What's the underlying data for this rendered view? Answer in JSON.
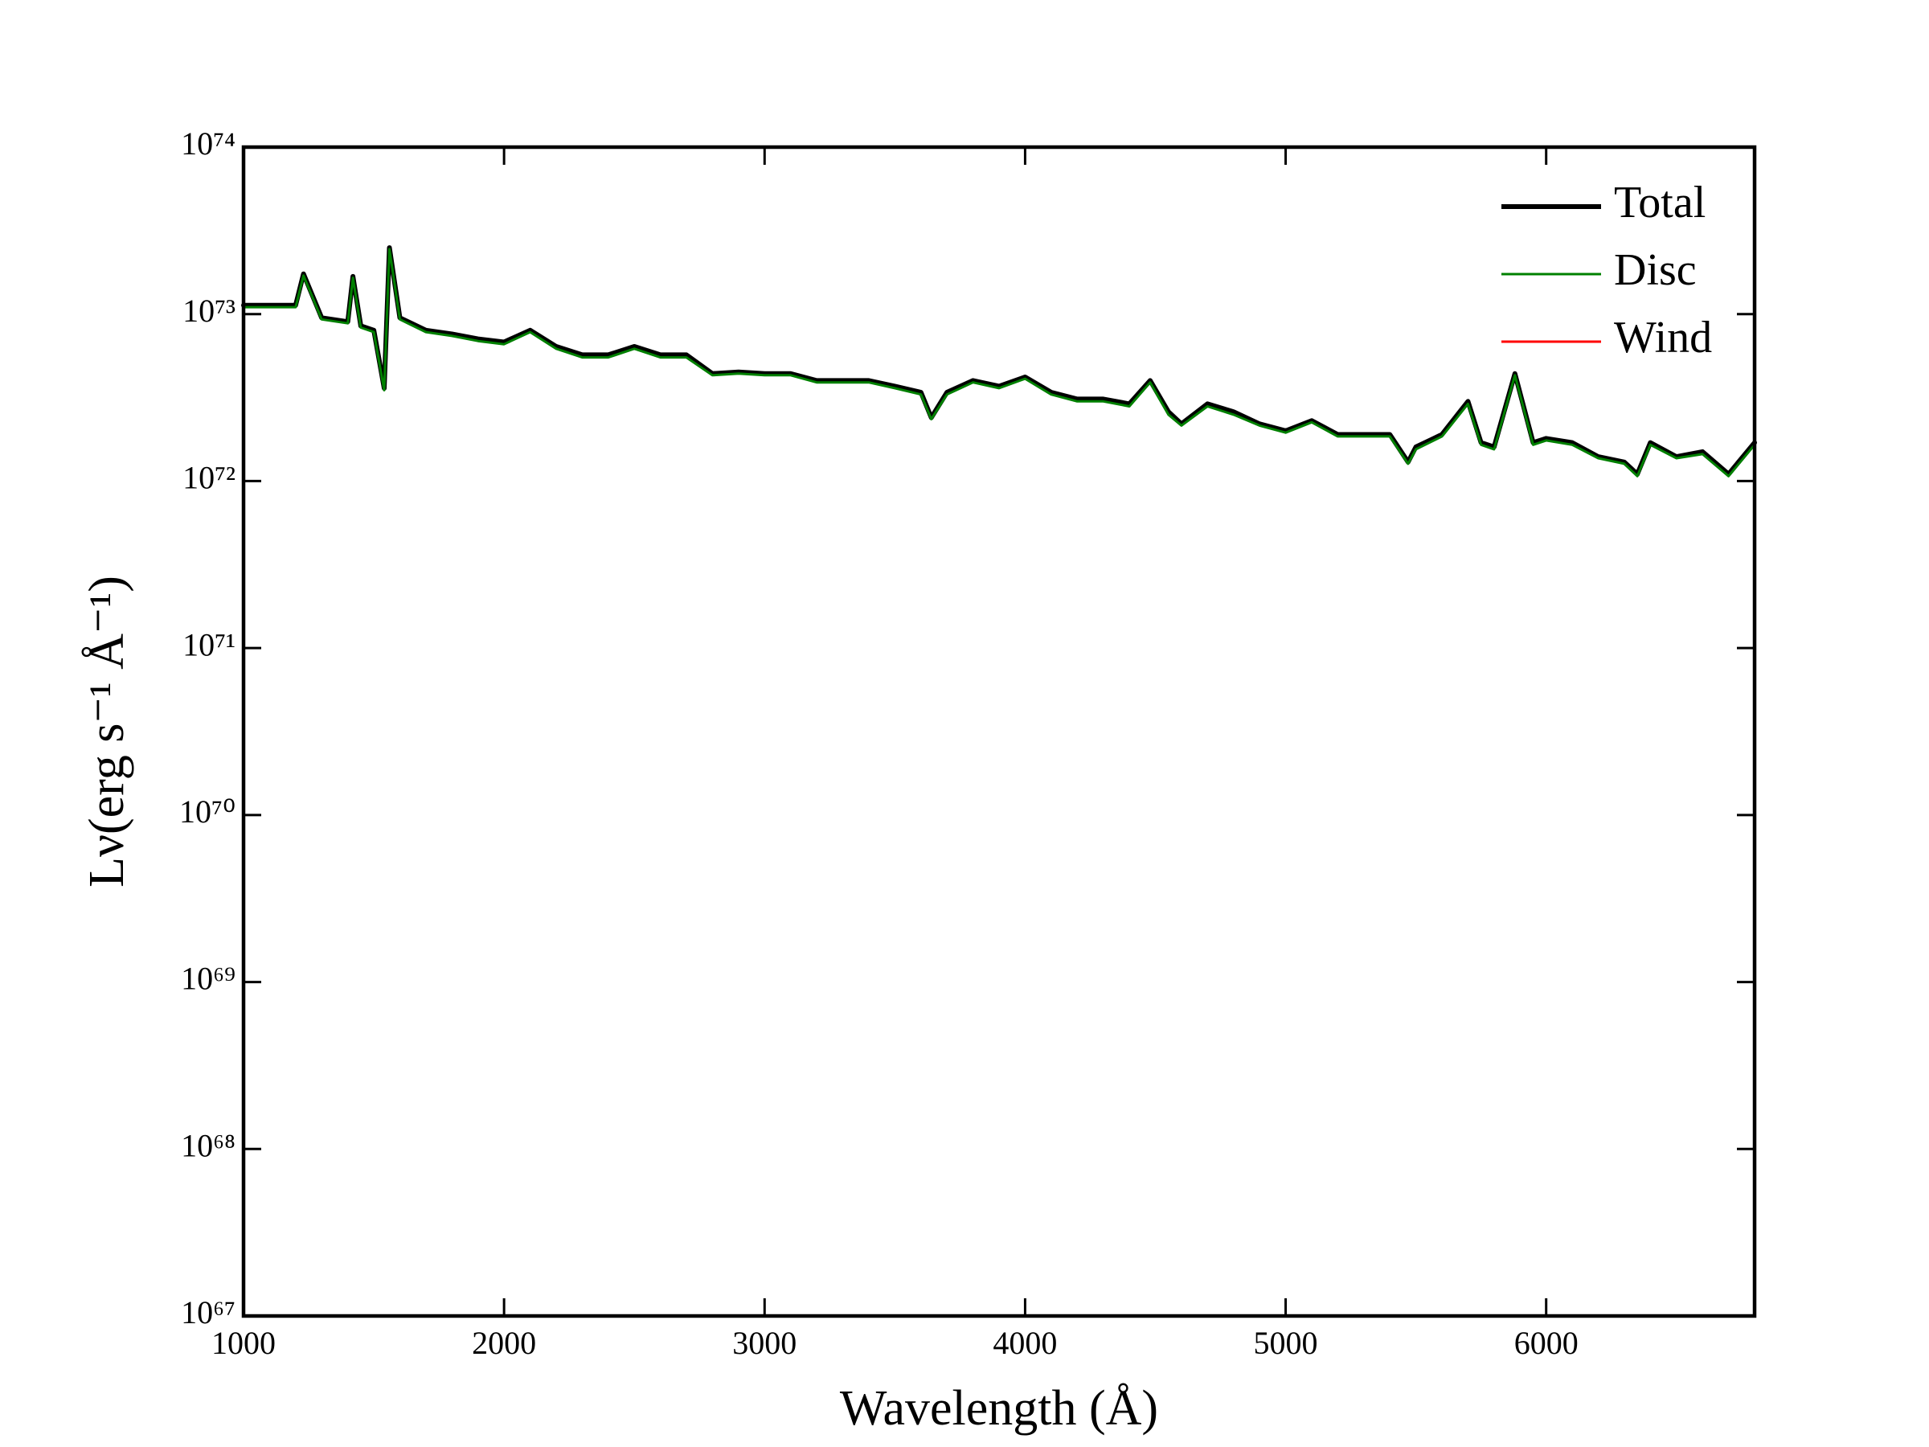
{
  "chart_data": {
    "type": "line",
    "xlabel": "Wavelength (Å)",
    "ylabel": "Lν(erg s⁻¹ Å⁻¹)",
    "yscale": "log",
    "xlim": [
      1000,
      6800
    ],
    "xticks": [
      1000,
      2000,
      3000,
      4000,
      5000,
      6000
    ],
    "ylim": [
      1e+67,
      1e+74
    ],
    "yticks": [
      {
        "value": 1e+67,
        "label": "10⁶⁷"
      },
      {
        "value": 1e+68,
        "label": "10⁶⁸"
      },
      {
        "value": 1e+69,
        "label": "10⁶⁹"
      },
      {
        "value": 1e+70,
        "label": "10⁷⁰"
      },
      {
        "value": 1e+71,
        "label": "10⁷¹"
      },
      {
        "value": 1e+72,
        "label": "10⁷²"
      },
      {
        "value": 1e+73,
        "label": "10⁷³"
      },
      {
        "value": 1e+74,
        "label": "10⁷⁴"
      }
    ],
    "grid": false,
    "legend": "upper right",
    "x": [
      1000,
      1100,
      1200,
      1230,
      1300,
      1400,
      1420,
      1450,
      1500,
      1540,
      1560,
      1600,
      1700,
      1800,
      1900,
      2000,
      2100,
      2200,
      2300,
      2400,
      2500,
      2600,
      2700,
      2800,
      2900,
      3000,
      3100,
      3200,
      3300,
      3400,
      3500,
      3600,
      3640,
      3700,
      3800,
      3900,
      4000,
      4100,
      4200,
      4300,
      4400,
      4480,
      4550,
      4600,
      4700,
      4800,
      4900,
      5000,
      5100,
      5200,
      5300,
      5400,
      5470,
      5500,
      5600,
      5700,
      5750,
      5800,
      5880,
      5950,
      6000,
      6100,
      6200,
      6300,
      6350,
      6400,
      6500,
      6600,
      6700,
      6800
    ],
    "series": [
      {
        "name": "Total",
        "color": "#000000",
        "width": 6,
        "values": [
          1.13e+73,
          1.13e+73,
          1.13e+73,
          1.74e+73,
          9.5e+72,
          9e+72,
          1.68e+73,
          8.5e+72,
          8e+72,
          3.6e+72,
          2.5e+73,
          9.5e+72,
          8e+72,
          7.6e+72,
          7.1e+72,
          6.8e+72,
          8e+72,
          6.4e+72,
          5.7e+72,
          5.7e+72,
          6.4e+72,
          5.7e+72,
          5.7e+72,
          4.4e+72,
          4.5e+72,
          4.4e+72,
          4.4e+72,
          4e+72,
          4e+72,
          4e+72,
          3.7e+72,
          3.4e+72,
          2.4e+72,
          3.4e+72,
          4e+72,
          3.7e+72,
          4.2e+72,
          3.4e+72,
          3.1e+72,
          3.1e+72,
          2.9e+72,
          4e+72,
          2.6e+72,
          2.2e+72,
          2.9e+72,
          2.6e+72,
          2.2e+72,
          2e+72,
          2.3e+72,
          1.9e+72,
          1.9e+72,
          1.9e+72,
          1.3e+72,
          1.6e+72,
          1.9e+72,
          3e+72,
          1.7e+72,
          1.6e+72,
          4.4e+72,
          1.7e+72,
          1.8e+72,
          1.7e+72,
          1.4e+72,
          1.3e+72,
          1.1e+72,
          1.7e+72,
          1.4e+72,
          1.5e+72,
          1.1e+72,
          1.7e+72
        ]
      },
      {
        "name": "Disc",
        "color": "#008000",
        "width": 3,
        "values": [
          1.1e+73,
          1.1e+73,
          1.1e+73,
          1.7e+73,
          9.3e+72,
          8.8e+72,
          1.65e+73,
          8.3e+72,
          7.8e+72,
          3.5e+72,
          2.45e+73,
          9.3e+72,
          7.8e+72,
          7.4e+72,
          6.9e+72,
          6.6e+72,
          7.8e+72,
          6.2e+72,
          5.5e+72,
          5.5e+72,
          6.2e+72,
          5.5e+72,
          5.5e+72,
          4.3e+72,
          4.4e+72,
          4.3e+72,
          4.3e+72,
          3.9e+72,
          3.9e+72,
          3.9e+72,
          3.6e+72,
          3.3e+72,
          2.35e+72,
          3.3e+72,
          3.9e+72,
          3.6e+72,
          4.1e+72,
          3.3e+72,
          3e+72,
          3e+72,
          2.8e+72,
          3.9e+72,
          2.5e+72,
          2.15e+72,
          2.8e+72,
          2.5e+72,
          2.15e+72,
          1.95e+72,
          2.25e+72,
          1.85e+72,
          1.85e+72,
          1.85e+72,
          1.27e+72,
          1.55e+72,
          1.85e+72,
          2.9e+72,
          1.65e+72,
          1.55e+72,
          4.3e+72,
          1.65e+72,
          1.75e+72,
          1.65e+72,
          1.37e+72,
          1.27e+72,
          1.07e+72,
          1.65e+72,
          1.37e+72,
          1.45e+72,
          1.07e+72,
          1.65e+72
        ]
      },
      {
        "name": "Wind",
        "color": "#ff0000",
        "width": 3,
        "values": [
          null,
          null,
          null,
          null,
          null,
          null,
          null,
          null,
          null,
          null,
          null,
          null,
          null,
          null,
          null,
          null,
          null,
          null,
          null,
          null,
          null,
          null,
          null,
          null,
          null,
          null,
          null,
          null,
          null,
          null,
          null,
          null,
          null,
          null,
          null,
          null,
          null,
          null,
          null,
          null,
          null,
          null,
          null,
          null,
          null,
          null,
          null,
          null,
          null,
          null,
          null,
          null,
          null,
          null,
          null,
          null,
          null,
          null,
          null,
          null,
          null,
          null,
          null,
          null,
          null,
          null,
          null,
          null,
          null,
          null
        ]
      }
    ]
  }
}
